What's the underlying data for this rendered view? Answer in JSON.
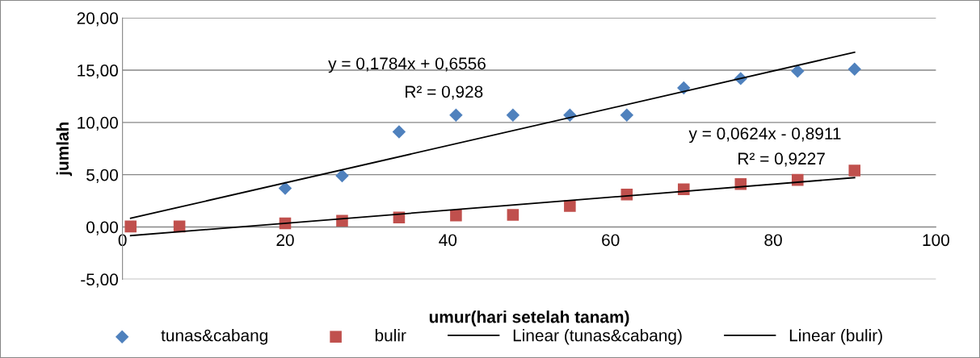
{
  "chart_data": {
    "type": "scatter",
    "xlabel": "umur(hari setelah tanam)",
    "ylabel": "jumlah",
    "xlim": [
      0,
      100
    ],
    "xticks": [
      0,
      20,
      40,
      60,
      80,
      100
    ],
    "ylim": [
      -5,
      20
    ],
    "yticks": [
      {
        "value": -5,
        "label": "-5,00"
      },
      {
        "value": 0,
        "label": "0,00"
      },
      {
        "value": 5,
        "label": "5,00"
      },
      {
        "value": 10,
        "label": "10,00"
      },
      {
        "value": 15,
        "label": "15,00"
      },
      {
        "value": 20,
        "label": "20,00"
      }
    ],
    "grid": "y",
    "legend": "bottom",
    "series": [
      {
        "name": "tunas&cabang",
        "color": "#4f81bd",
        "marker": "diamond",
        "x": [
          20,
          27,
          34,
          41,
          48,
          55,
          62,
          69,
          76,
          83,
          90
        ],
        "values": [
          3.7,
          4.9,
          9.1,
          10.7,
          10.7,
          10.7,
          10.7,
          13.3,
          14.2,
          14.9,
          15.1
        ]
      },
      {
        "name": "bulir",
        "color": "#c0504d",
        "marker": "square",
        "x": [
          1,
          7,
          20,
          27,
          34,
          41,
          48,
          55,
          62,
          69,
          76,
          83,
          90
        ],
        "values": [
          0.05,
          0.05,
          0.35,
          0.6,
          0.9,
          1.1,
          1.15,
          2.0,
          3.1,
          3.6,
          4.1,
          4.5,
          5.4
        ]
      },
      {
        "name": "Linear (tunas&cabang)",
        "type": "line",
        "color": "#000000",
        "x": [
          1,
          90
        ],
        "values": [
          0.83,
          16.71
        ]
      },
      {
        "name": "Linear (bulir)",
        "type": "line",
        "color": "#000000",
        "x": [
          1,
          90
        ],
        "values": [
          -0.83,
          4.72
        ]
      }
    ],
    "annotations": [
      "y = 0,1784x + 0,6556",
      "R² = 0,928",
      "y = 0,0624x - 0,8911",
      "R² = 0,9227"
    ]
  }
}
